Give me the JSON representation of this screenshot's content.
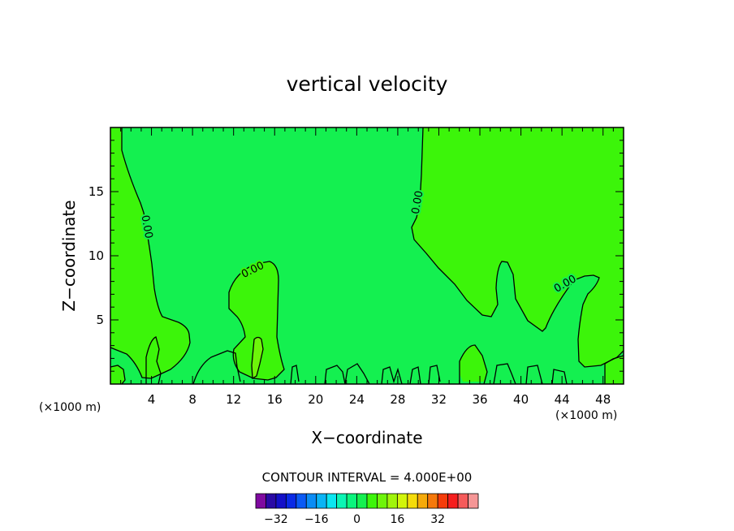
{
  "chart_data": {
    "type": "contour",
    "title": "vertical velocity",
    "xlabel": "X−coordinate",
    "ylabel": "Z−coordinate",
    "x_unit": "(×1000 m)",
    "xlim": [
      0,
      50
    ],
    "ylim": [
      0,
      20
    ],
    "x_ticks": [
      "4",
      "8",
      "12",
      "16",
      "20",
      "24",
      "28",
      "32",
      "36",
      "40",
      "44",
      "48"
    ],
    "y_ticks": [
      "5",
      "10",
      "15"
    ],
    "contour_interval_text": "CONTOUR INTERVAL = 4.000E+00",
    "contour_label": "0.00",
    "contour_labels_count": 5,
    "colorbar": {
      "levels": 22,
      "labels": [
        "−32",
        "−16",
        "0",
        "16",
        "32"
      ],
      "colors": [
        "#7f0aa0",
        "#2a0aa5",
        "#1410c8",
        "#0a2ae6",
        "#0a5af5",
        "#0a8cf5",
        "#0ab4f5",
        "#0ae6f0",
        "#0af5b4",
        "#0af57d",
        "#14f050",
        "#3cf50a",
        "#6ef50a",
        "#a0f50a",
        "#d2f50a",
        "#f5dc0a",
        "#f5aa0a",
        "#f5780a",
        "#f53c0a",
        "#f51e1e",
        "#f55a5a",
        "#f59696"
      ]
    },
    "field_colors": {
      "background": "#14f050",
      "positive": "#3cf50a",
      "strong_positive": "#6ef50a"
    }
  }
}
